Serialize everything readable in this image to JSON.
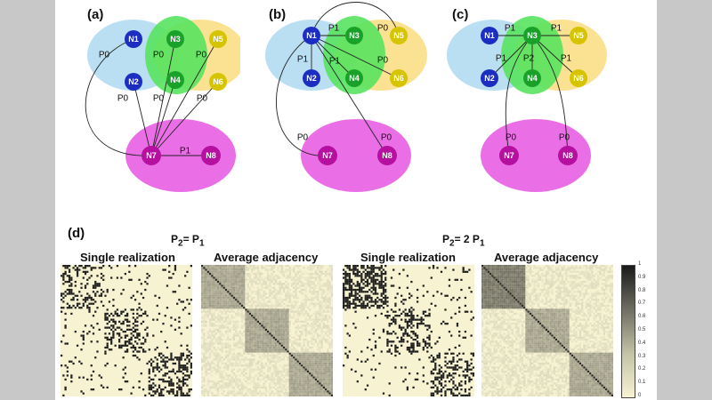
{
  "panels": {
    "a": {
      "label": "(a)"
    },
    "b": {
      "label": "(b)"
    },
    "c": {
      "label": "(c)"
    },
    "d": {
      "label": "(d)"
    }
  },
  "nodes": {
    "n1": "N1",
    "n2": "N2",
    "n3": "N3",
    "n4": "N4",
    "n5": "N5",
    "n6": "N6",
    "n7": "N7",
    "n8": "N8"
  },
  "edge_labels": {
    "p0": "P0",
    "p1": "P1",
    "p2": "P2"
  },
  "colors": {
    "blue_group": "#b3dcf1",
    "green_group": "#58e35f",
    "yellow_group": "#f9dd7f",
    "magenta_group": "#ea6fe6",
    "node_blue": "#1c2ec2",
    "node_green": "#1aa12a",
    "node_yellow": "#d6c400",
    "node_magenta": "#b5109f",
    "matrix_bg": "#f6f2d2"
  },
  "matrices": {
    "left": {
      "condition_main": "P",
      "condition_sub1": "2",
      "condition_eq": "= P",
      "condition_sub2": "1",
      "single_caption": "Single realization",
      "average_caption": "Average adjacency"
    },
    "right": {
      "condition_main": "P",
      "condition_sub1": "2",
      "condition_eq": "= 2 P",
      "condition_sub2": "1",
      "single_caption": "Single realization",
      "average_caption": "Average adjacency"
    }
  },
  "colorbar": {
    "ticks": [
      "1",
      "0.9",
      "0.8",
      "0.7",
      "0.6",
      "0.5",
      "0.4",
      "0.3",
      "0.2",
      "0.1",
      "0"
    ]
  }
}
